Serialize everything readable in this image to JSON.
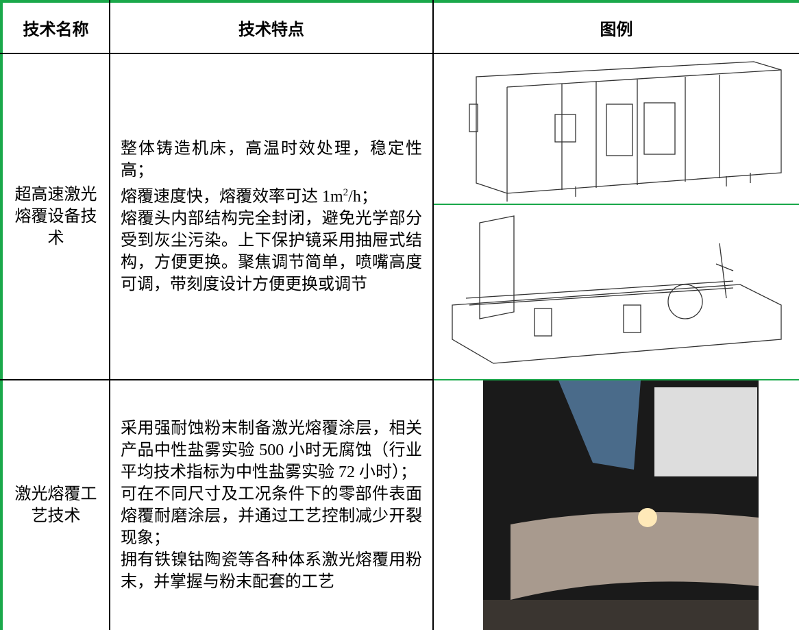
{
  "table": {
    "header": [
      "技术名称",
      "技术特点",
      "图例"
    ],
    "rows": [
      {
        "name": "超高速激光熔覆设备技术",
        "features": [
          "整体铸造机床，高温时效处理，稳定性高；",
          {
            "text": "熔覆速度快，熔覆效率可达 1m",
            "sup": "2",
            "after": "/h；"
          },
          "熔覆头内部结构完全封闭，避免光学部分受到灰尘污染。上下保护镜采用抽屉式结构，方便更换。聚焦调节简单，喷嘴高度可调，带刻度设计方便更换或调节"
        ]
      },
      {
        "name": "激光熔覆工艺技术",
        "features": [
          "采用强耐蚀粉末制备激光熔覆涂层，相关产品中性盐雾实验 500 小时无腐蚀（行业平均技术指标为中性盐雾实验 72 小时）；",
          "可在不同尺寸及工况条件下的零部件表面熔覆耐磨涂层，并通过工艺控制减少开裂现象；",
          "拥有铁镍钴陶瓷等各种体系激光熔覆用粉末，并掌握与粉末配套的工艺"
        ]
      }
    ]
  }
}
